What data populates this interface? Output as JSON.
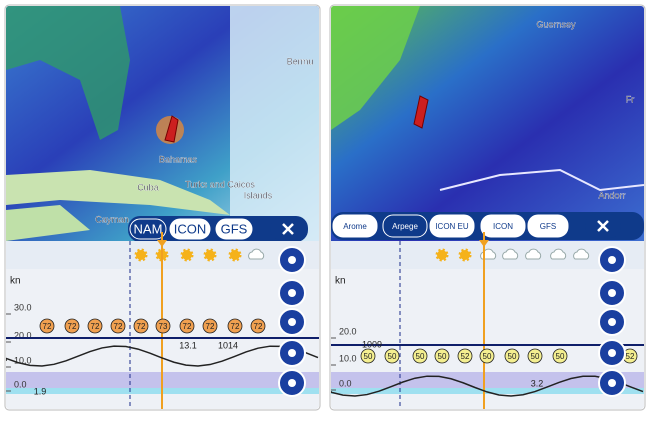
{
  "left": {
    "map_labels": [
      "Bermu",
      "Bahamas",
      "Turks and Caicos",
      "Islands",
      "Cuba",
      "Cayman"
    ],
    "model_buttons": [
      "NAM",
      "ICON",
      "GFS"
    ],
    "chart": {
      "unit": "kn",
      "axis_labels": [
        "30.0",
        "20.0",
        "10.0",
        "0.0"
      ],
      "markers": [
        "72",
        "72",
        "72",
        "72",
        "72",
        "73",
        "72",
        "72",
        "72",
        "72"
      ],
      "annotations": [
        "13.1",
        "1014",
        "1.9"
      ]
    }
  },
  "right": {
    "map_labels": [
      "Guernsey",
      "Fr",
      "Andorr"
    ],
    "model_buttons": [
      "Arome",
      "Arpege",
      "ICON EU",
      "ICON",
      "GFS"
    ],
    "chart": {
      "unit": "kn",
      "axis_labels": [
        "20.0",
        "10.0",
        "0.0"
      ],
      "markers": [
        "50",
        "50",
        "50",
        "50",
        "52",
        "50",
        "50",
        "50",
        "50",
        "52"
      ],
      "annotations": [
        "1009",
        "3.2"
      ]
    }
  }
}
